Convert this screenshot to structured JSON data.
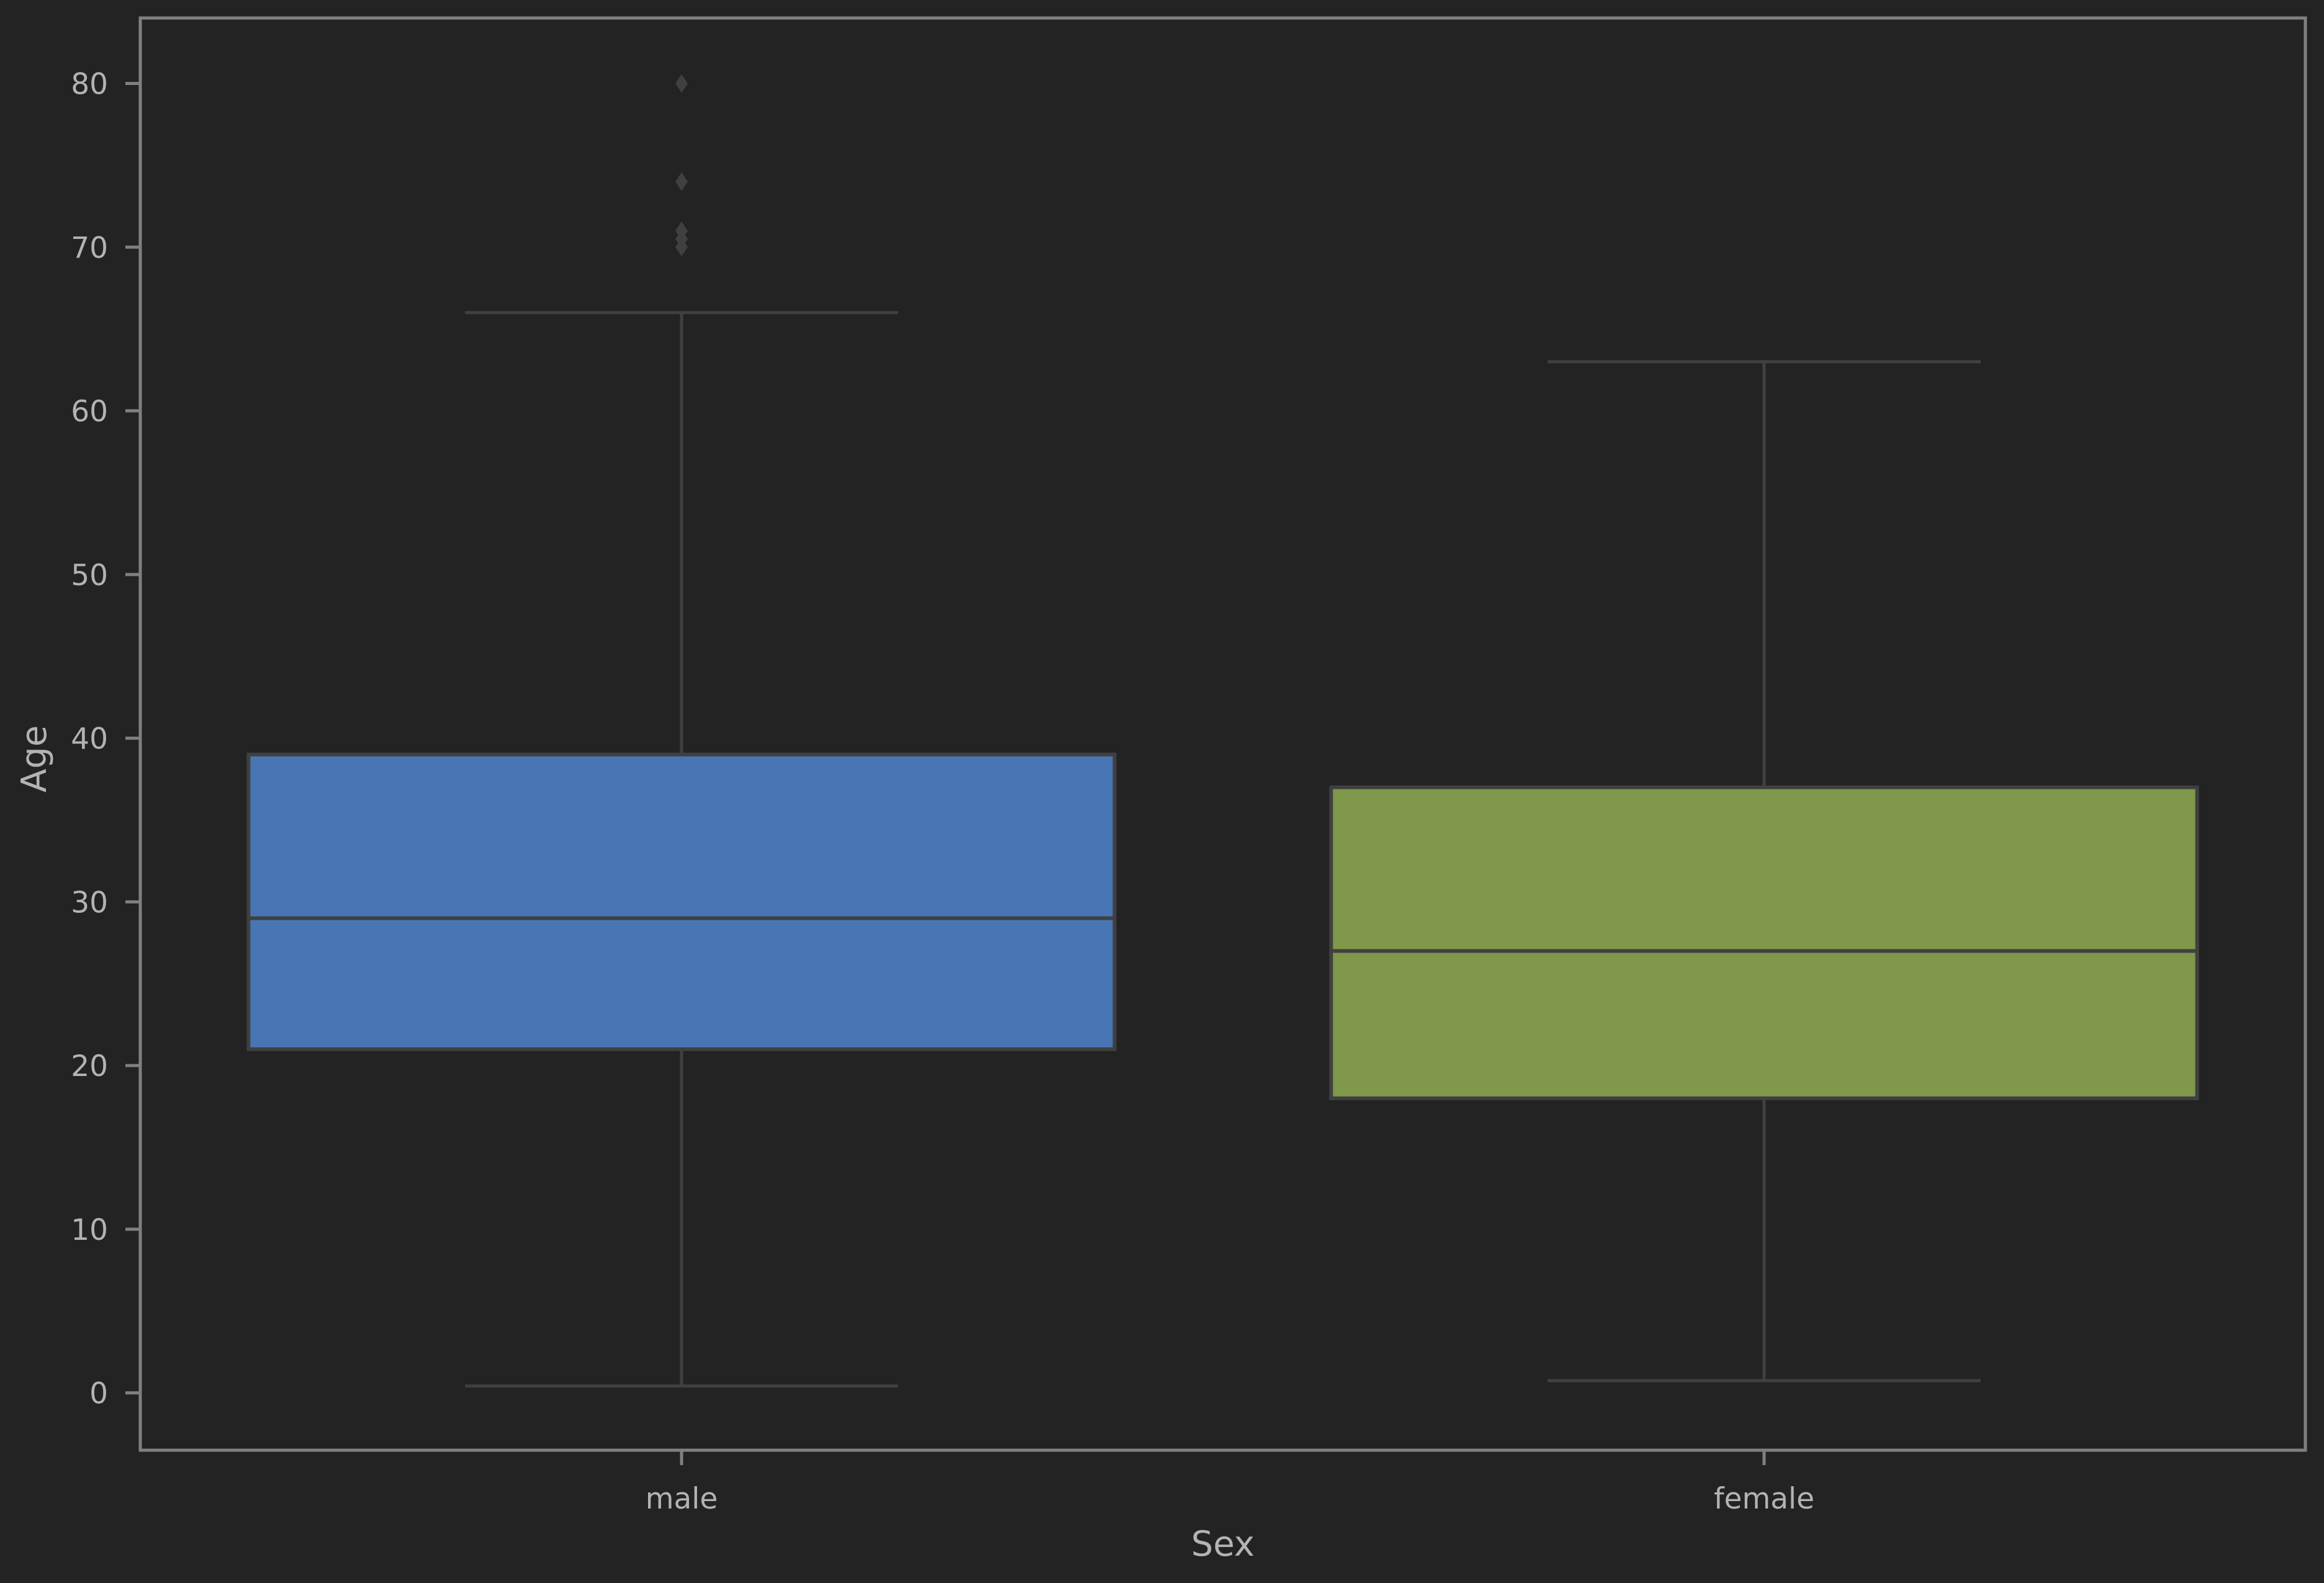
{
  "chart_data": {
    "type": "box",
    "title": "",
    "xlabel": "Sex",
    "ylabel": "Age",
    "ylim": [
      -3.5,
      84
    ],
    "yticks": [
      0,
      10,
      20,
      30,
      40,
      50,
      60,
      70,
      80
    ],
    "grid": false,
    "legend": "none",
    "background_color": "#232323",
    "frame_color": "#808080",
    "line_color": "#404040",
    "categories": [
      "male",
      "female"
    ],
    "boxes": [
      {
        "category": "male",
        "color": "#4876b4",
        "whisker_low": 0.42,
        "q1": 21,
        "median": 29,
        "q3": 39,
        "whisker_high": 66,
        "outliers": [
          70,
          70.5,
          71,
          74,
          80
        ]
      },
      {
        "category": "female",
        "color": "#7f984a",
        "whisker_low": 0.75,
        "q1": 18,
        "median": 27,
        "q3": 37,
        "whisker_high": 63,
        "outliers": []
      }
    ]
  }
}
